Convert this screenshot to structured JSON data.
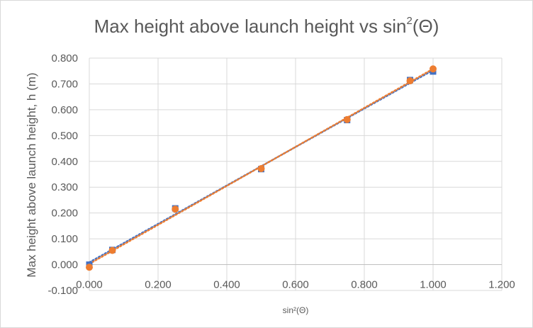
{
  "chart": {
    "title_main": "Max height above launch height vs sin",
    "title_sup": "2",
    "title_end": "(Θ)"
  },
  "chart_data": {
    "type": "scatter",
    "title": "Max height above launch height vs sin²(Θ)",
    "xlabel": "sin²(Θ)",
    "ylabel": "Max height above launch height, h (m)",
    "xlim": [
      0,
      1.2
    ],
    "ylim": [
      -0.1,
      0.8
    ],
    "x_ticks": [
      0,
      0.2,
      0.4,
      0.6,
      0.8,
      1.0,
      1.2
    ],
    "y_ticks": [
      -0.1,
      0,
      0.1,
      0.2,
      0.3,
      0.4,
      0.5,
      0.6,
      0.7,
      0.8
    ],
    "x_tick_labels": [
      "0.000",
      "0.200",
      "0.400",
      "0.600",
      "0.800",
      "1.000",
      "1.200"
    ],
    "y_tick_labels": [
      "-0.100",
      "0.000",
      "0.100",
      "0.200",
      "0.300",
      "0.400",
      "0.500",
      "0.600",
      "0.700",
      "0.800"
    ],
    "grid": true,
    "legend": "none",
    "series": [
      {
        "color": "#4472c4",
        "marker": "square",
        "trendline": "linear-dotted",
        "x": [
          0.0,
          0.067,
          0.25,
          0.5,
          0.75,
          0.933,
          1.0
        ],
        "y": [
          0.0,
          0.057,
          0.218,
          0.37,
          0.56,
          0.715,
          0.748
        ]
      },
      {
        "color": "#ed7d31",
        "marker": "circle",
        "trendline": "linear-dotted",
        "x": [
          0.0,
          0.067,
          0.25,
          0.5,
          0.75,
          0.933,
          1.0
        ],
        "y": [
          -0.01,
          0.055,
          0.215,
          0.372,
          0.562,
          0.712,
          0.758
        ]
      }
    ]
  }
}
